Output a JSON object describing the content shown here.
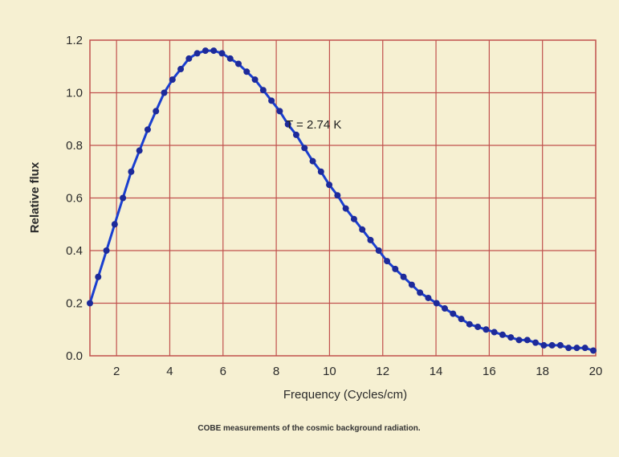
{
  "chart_data": {
    "type": "line",
    "title": "",
    "xlabel": "Frequency (Cycles/cm)",
    "ylabel": "Relative flux",
    "xlim": [
      1,
      20
    ],
    "ylim": [
      0,
      1.2
    ],
    "xticks": [
      "2",
      "4",
      "6",
      "8",
      "10",
      "12",
      "14",
      "16",
      "18",
      "20"
    ],
    "yticks": [
      "0.0",
      "0.2",
      "0.4",
      "0.6",
      "0.8",
      "1.0",
      "1.2"
    ],
    "grid": true,
    "annotation": "T = 2.74 K",
    "caption": "COBE measurements of the cosmic background radiation.",
    "colors": {
      "line": "#1a3fd0",
      "marker": "#1d2a9a",
      "grid": "#c0504d",
      "background": "#f6f0d2"
    },
    "series": [
      {
        "x": [
          1.0,
          1.31,
          1.62,
          1.93,
          2.24,
          2.55,
          2.86,
          3.17,
          3.48,
          3.79,
          4.1,
          4.41,
          4.72,
          5.03,
          5.34,
          5.65,
          5.96,
          6.27,
          6.58,
          6.89,
          7.2,
          7.51,
          7.82,
          8.13,
          8.44,
          8.75,
          9.06,
          9.37,
          9.68,
          9.99,
          10.3,
          10.61,
          10.92,
          11.23,
          11.54,
          11.85,
          12.16,
          12.47,
          12.78,
          13.09,
          13.4,
          13.71,
          14.02,
          14.33,
          14.64,
          14.95,
          15.26,
          15.57,
          15.88,
          16.19,
          16.5,
          16.81,
          17.12,
          17.43,
          17.74,
          18.05,
          18.36,
          18.67,
          18.98,
          19.29,
          19.6,
          19.91
        ],
        "y": [
          0.2,
          0.3,
          0.4,
          0.5,
          0.6,
          0.7,
          0.78,
          0.86,
          0.93,
          1.0,
          1.05,
          1.09,
          1.13,
          1.15,
          1.16,
          1.16,
          1.15,
          1.13,
          1.11,
          1.08,
          1.05,
          1.01,
          0.97,
          0.93,
          0.88,
          0.84,
          0.79,
          0.74,
          0.7,
          0.65,
          0.61,
          0.56,
          0.52,
          0.48,
          0.44,
          0.4,
          0.36,
          0.33,
          0.3,
          0.27,
          0.24,
          0.22,
          0.2,
          0.18,
          0.16,
          0.14,
          0.12,
          0.11,
          0.1,
          0.09,
          0.08,
          0.07,
          0.06,
          0.06,
          0.05,
          0.04,
          0.04,
          0.04,
          0.03,
          0.03,
          0.03,
          0.02
        ]
      }
    ]
  }
}
